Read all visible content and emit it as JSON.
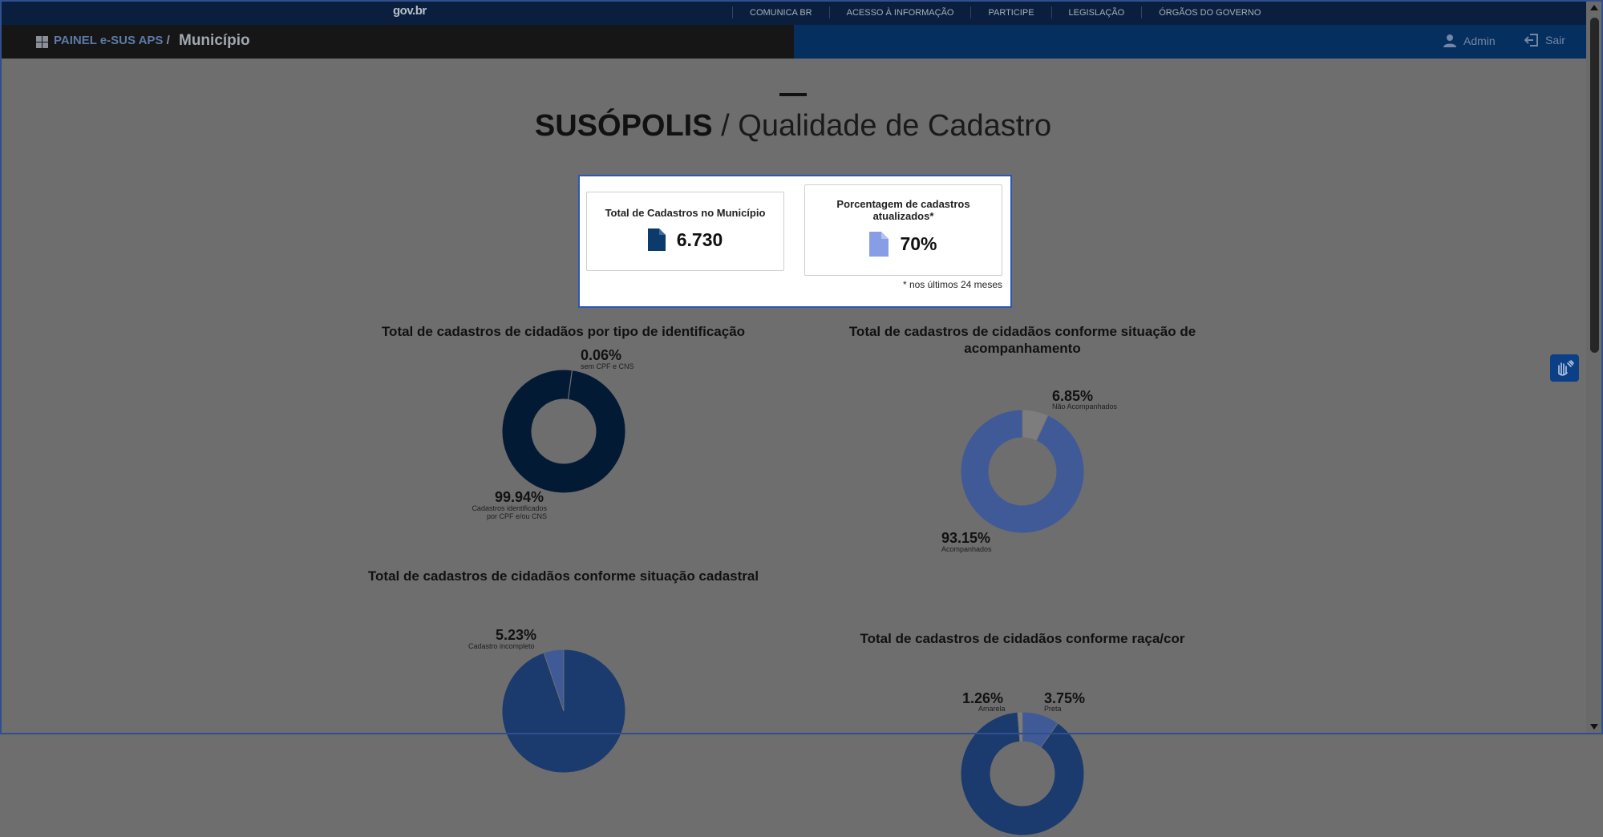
{
  "govbar": {
    "logo": "gov.br",
    "links": [
      "COMUNICA BR",
      "ACESSO À INFORMAÇÃO",
      "PARTICIPE",
      "LEGISLAÇÃO",
      "ÓRGÃOS DO GOVERNO"
    ]
  },
  "appbar": {
    "brand": "PAINEL e-SUS APS",
    "separator": "/",
    "page": "Município",
    "user_label": "Admin",
    "exit_label": "Sair"
  },
  "header": {
    "city": "SUSÓPOLIS",
    "separator": " / ",
    "section": "Qualidade de Cadastro"
  },
  "kpis": {
    "total_title": "Total de Cadastros no Município",
    "total_value": "6.730",
    "updated_title": "Porcentagem de cadastros atualizados*",
    "updated_value": "70%",
    "note": "* nos últimos 24 meses"
  },
  "colors": {
    "navy": "#031a35",
    "accent_blue": "#1b3a6e",
    "blue_muted": "#3f5a96",
    "light_blue": "#879ee6",
    "gray_slice": "#7d7d7d"
  },
  "charts": {
    "identificacao": {
      "title": "Total de cadastros de cidadãos por tipo de identificação",
      "slices": [
        {
          "pct": "0.06%",
          "label": "sem CPF e CNS",
          "value": 0.06
        },
        {
          "pct": "99.94%",
          "label_line1": "Cadastros identificados",
          "label_line2": "por CPF e/ou CNS",
          "value": 99.94
        }
      ]
    },
    "acompanhamento": {
      "title_line1": "Total de cadastros de cidadãos conforme situação de",
      "title_line2": "acompanhamento",
      "slices": [
        {
          "pct": "6.85%",
          "label": "Não Acompanhados",
          "value": 6.85
        },
        {
          "pct": "93.15%",
          "label": "Acompanhados",
          "value": 93.15
        }
      ]
    },
    "situacao": {
      "title": "Total de cadastros de cidadãos conforme situação cadastral",
      "slices": [
        {
          "pct": "5.23%",
          "label": "Cadastro incompleto",
          "value": 5.23
        }
      ]
    },
    "raca": {
      "title": "Total de cadastros de cidadãos conforme raça/cor",
      "slices": [
        {
          "pct": "1.26%",
          "label": "Amarela",
          "value": 1.26
        },
        {
          "pct": "3.75%",
          "label": "Preta",
          "value": 3.75
        }
      ]
    }
  }
}
